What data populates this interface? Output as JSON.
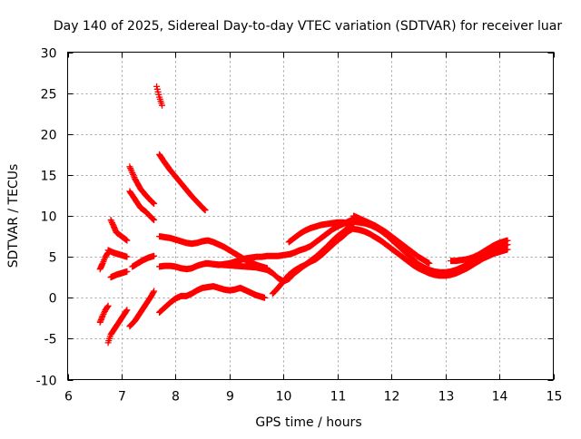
{
  "chart_data": {
    "type": "scatter",
    "title": "Day 140 of 2025, Sidereal Day-to-day VTEC variation (SDTVAR) for receiver luar",
    "xlabel": "GPS time / hours",
    "ylabel": "SDTVAR / TECUs",
    "xlim": [
      6,
      15
    ],
    "ylim": [
      -10,
      30
    ],
    "xticks": [
      6,
      7,
      8,
      9,
      10,
      11,
      12,
      13,
      14,
      15
    ],
    "yticks": [
      -10,
      -5,
      0,
      5,
      10,
      15,
      20,
      25,
      30
    ],
    "grid": true,
    "marker": "+",
    "color": "#ff0000",
    "series": [
      {
        "name": "s1",
        "x": [
          6.6,
          6.65,
          6.7,
          6.75
        ],
        "y": [
          3.5,
          4.2,
          5.0,
          5.5
        ]
      },
      {
        "name": "s2",
        "x": [
          6.6,
          6.65,
          6.7,
          6.75
        ],
        "y": [
          -3.0,
          -2.2,
          -1.5,
          -1.0
        ]
      },
      {
        "name": "s3",
        "x": [
          6.75,
          6.85,
          6.95,
          7.1
        ],
        "y": [
          5.8,
          5.5,
          5.3,
          5.0
        ]
      },
      {
        "name": "s4",
        "x": [
          6.8,
          6.85,
          6.9,
          7.0,
          7.1
        ],
        "y": [
          9.5,
          8.8,
          8.0,
          7.5,
          7.0
        ]
      },
      {
        "name": "s5",
        "x": [
          6.75,
          6.8,
          6.9,
          7.0,
          7.1
        ],
        "y": [
          -5.5,
          -4.5,
          -3.5,
          -2.5,
          -1.5
        ]
      },
      {
        "name": "s6",
        "x": [
          6.8,
          6.9,
          7.0,
          7.1
        ],
        "y": [
          2.5,
          2.8,
          3.0,
          3.2
        ]
      },
      {
        "name": "s7",
        "x": [
          7.15,
          7.25,
          7.35,
          7.45,
          7.55,
          7.6
        ],
        "y": [
          16.0,
          14.5,
          13.3,
          12.5,
          11.8,
          11.5
        ]
      },
      {
        "name": "s8",
        "x": [
          7.15,
          7.25,
          7.35,
          7.45,
          7.55,
          7.6
        ],
        "y": [
          13.0,
          12.0,
          11.0,
          10.5,
          9.8,
          9.5
        ]
      },
      {
        "name": "s9",
        "x": [
          7.15,
          7.25,
          7.35,
          7.45,
          7.55,
          7.6
        ],
        "y": [
          -3.5,
          -2.8,
          -1.8,
          -0.8,
          0.2,
          0.8
        ]
      },
      {
        "name": "s10",
        "x": [
          7.2,
          7.3,
          7.4,
          7.5,
          7.6
        ],
        "y": [
          3.8,
          4.2,
          4.6,
          4.9,
          5.1
        ]
      },
      {
        "name": "s11",
        "x": [
          7.65,
          7.7,
          7.75
        ],
        "y": [
          25.8,
          24.5,
          23.5
        ]
      },
      {
        "name": "s12",
        "x": [
          7.7,
          7.8,
          7.9,
          8.0,
          8.1,
          8.2,
          8.3,
          8.4,
          8.5,
          8.55
        ],
        "y": [
          17.5,
          16.5,
          15.6,
          14.8,
          14.0,
          13.2,
          12.4,
          11.7,
          11.0,
          10.7
        ]
      },
      {
        "name": "s13",
        "x": [
          7.7,
          7.8,
          7.9,
          8.0,
          8.1,
          8.2,
          8.3,
          8.4,
          8.5,
          8.6,
          8.7,
          8.8,
          8.9,
          9.0,
          9.1,
          9.2,
          9.3,
          9.4,
          9.5,
          9.6,
          9.7
        ],
        "y": [
          7.5,
          7.4,
          7.3,
          7.1,
          6.9,
          6.7,
          6.6,
          6.7,
          6.9,
          7.0,
          6.8,
          6.5,
          6.2,
          5.8,
          5.4,
          5.0,
          4.6,
          4.3,
          4.0,
          3.8,
          3.6
        ]
      },
      {
        "name": "s14",
        "x": [
          7.7,
          7.8,
          7.9,
          8.0,
          8.1,
          8.2,
          8.3,
          8.4,
          8.5,
          8.6,
          8.7,
          8.8,
          8.9,
          9.0,
          9.1,
          9.2,
          9.3,
          9.4,
          9.5,
          9.6,
          9.7,
          9.8,
          9.9,
          10.0,
          10.1,
          10.2,
          10.3,
          10.4,
          10.5,
          10.6,
          10.7,
          10.8,
          10.9,
          11.0,
          11.1,
          11.2,
          11.3
        ],
        "y": [
          3.8,
          3.9,
          3.9,
          3.8,
          3.6,
          3.5,
          3.6,
          3.9,
          4.1,
          4.2,
          4.1,
          4.0,
          4.1,
          4.2,
          4.4,
          4.6,
          4.8,
          4.9,
          5.0,
          5.0,
          5.1,
          5.1,
          5.1,
          5.2,
          5.3,
          5.5,
          5.8,
          6.0,
          6.3,
          6.8,
          7.3,
          7.8,
          8.3,
          8.7,
          9.0,
          9.3,
          9.6
        ]
      },
      {
        "name": "s15",
        "x": [
          7.7,
          7.8,
          7.9,
          8.0,
          8.1,
          8.2,
          8.3,
          8.4,
          8.5,
          8.6,
          8.7,
          8.8,
          8.9,
          9.0,
          9.1,
          9.2,
          9.3,
          9.4,
          9.5,
          9.6,
          9.65
        ],
        "y": [
          -1.8,
          -1.2,
          -0.6,
          -0.1,
          0.2,
          0.2,
          0.5,
          0.9,
          1.2,
          1.3,
          1.4,
          1.2,
          1.0,
          0.9,
          1.0,
          1.2,
          0.9,
          0.6,
          0.3,
          0.1,
          0.0
        ]
      },
      {
        "name": "s16",
        "x": [
          8.55,
          8.7,
          8.9,
          9.1,
          9.3,
          9.5,
          9.7,
          9.8,
          9.9,
          10.0,
          10.1,
          10.2,
          10.3,
          10.4,
          10.5,
          10.6,
          10.7,
          10.8,
          10.9,
          11.0,
          11.1,
          11.2,
          11.3
        ],
        "y": [
          4.2,
          4.1,
          4.0,
          3.9,
          3.8,
          3.7,
          3.4,
          3.0,
          2.4,
          2.0,
          2.3,
          3.0,
          3.5,
          4.0,
          4.4,
          4.7,
          5.2,
          5.8,
          6.4,
          7.0,
          7.5,
          8.1,
          8.5
        ]
      },
      {
        "name": "s17",
        "x": [
          9.8,
          9.9,
          10.0,
          10.1,
          10.2,
          10.3,
          10.4,
          10.5,
          10.6,
          10.7,
          10.8,
          10.9,
          11.0,
          11.1,
          11.2,
          11.3
        ],
        "y": [
          0.5,
          1.2,
          2.0,
          2.8,
          3.3,
          3.7,
          4.0,
          4.5,
          5.0,
          5.6,
          6.2,
          6.9,
          7.5,
          8.0,
          8.6,
          9.2
        ]
      },
      {
        "name": "s18",
        "x": [
          10.1,
          10.2,
          10.3,
          10.4,
          10.5,
          10.6,
          10.7,
          10.8,
          10.9,
          11.0,
          11.1,
          11.2,
          11.3
        ],
        "y": [
          6.8,
          7.3,
          7.8,
          8.2,
          8.5,
          8.7,
          8.9,
          9.0,
          9.1,
          9.2,
          9.2,
          9.1,
          9.0
        ]
      },
      {
        "name": "s19",
        "x": [
          11.3,
          11.4,
          11.5,
          11.6,
          11.7,
          11.8,
          11.9,
          12.0,
          12.1,
          12.2,
          12.3,
          12.4,
          12.5,
          12.6,
          12.7,
          12.8,
          12.9,
          13.0,
          13.1,
          13.2,
          13.3,
          13.4,
          13.5,
          13.6,
          13.7,
          13.8,
          13.9,
          14.0,
          14.1,
          14.15
        ],
        "y": [
          9.3,
          9.2,
          9.1,
          8.9,
          8.6,
          8.2,
          7.7,
          7.1,
          6.5,
          5.9,
          5.3,
          4.7,
          4.1,
          3.7,
          3.4,
          3.2,
          3.1,
          3.1,
          3.2,
          3.4,
          3.7,
          4.0,
          4.4,
          4.8,
          5.2,
          5.6,
          5.9,
          6.2,
          6.4,
          6.5
        ]
      },
      {
        "name": "s20",
        "x": [
          11.3,
          11.4,
          11.5,
          11.6,
          11.7,
          11.8,
          11.9,
          12.0,
          12.1,
          12.2,
          12.3,
          12.4,
          12.5,
          12.6,
          12.7,
          12.8,
          12.9,
          13.0,
          13.1,
          13.2,
          13.3,
          13.4,
          13.5,
          13.6,
          13.7,
          13.8,
          13.9,
          14.0,
          14.1,
          14.15
        ],
        "y": [
          8.4,
          8.3,
          8.1,
          7.8,
          7.4,
          7.0,
          6.5,
          6.0,
          5.5,
          5.0,
          4.5,
          4.0,
          3.6,
          3.3,
          3.0,
          2.8,
          2.7,
          2.7,
          2.8,
          3.0,
          3.3,
          3.6,
          4.0,
          4.4,
          4.8,
          5.1,
          5.4,
          5.6,
          5.8,
          5.9
        ]
      },
      {
        "name": "s21",
        "x": [
          11.3,
          11.5,
          11.7,
          11.9,
          12.1,
          12.3,
          12.5,
          12.7
        ],
        "y": [
          10.0,
          9.4,
          8.8,
          8.0,
          7.0,
          6.0,
          5.0,
          4.2
        ]
      },
      {
        "name": "s22",
        "x": [
          13.1,
          13.2,
          13.3,
          13.4,
          13.5,
          13.6,
          13.7,
          13.8,
          13.9,
          14.0,
          14.1,
          14.15
        ],
        "y": [
          4.5,
          4.5,
          4.6,
          4.7,
          4.9,
          5.2,
          5.6,
          6.0,
          6.4,
          6.7,
          6.9,
          7.0
        ]
      }
    ]
  }
}
